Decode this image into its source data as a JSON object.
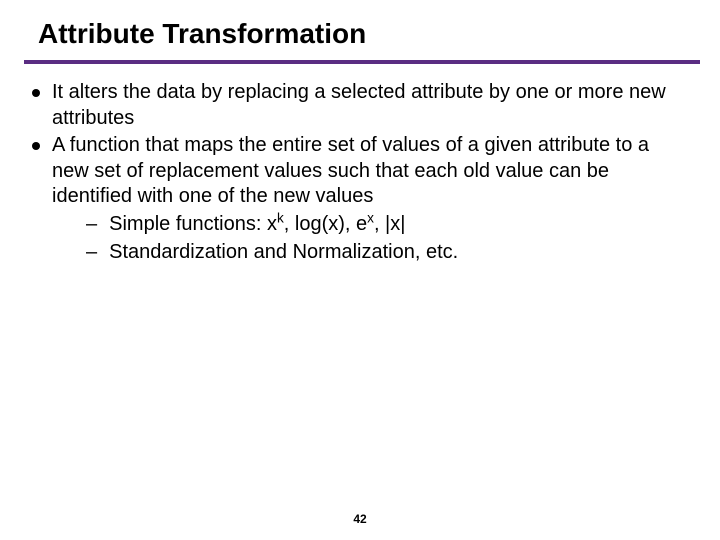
{
  "title": "Attribute Transformation",
  "divider_color": "#5a2d82",
  "bullets": [
    {
      "text": "It alters the data by replacing a selected attribute by one or more new attributes"
    },
    {
      "text": "A function that maps the entire set of values of a given attribute to a new set of replacement values such that each old value can be identified with one of the new values",
      "subs": [
        {
          "html": "Simple functions: x<sup>k</sup>, log(x), e<sup>x</sup>, |x|"
        },
        {
          "html": "Standardization and Normalization, etc."
        }
      ]
    }
  ],
  "page_number": "42"
}
